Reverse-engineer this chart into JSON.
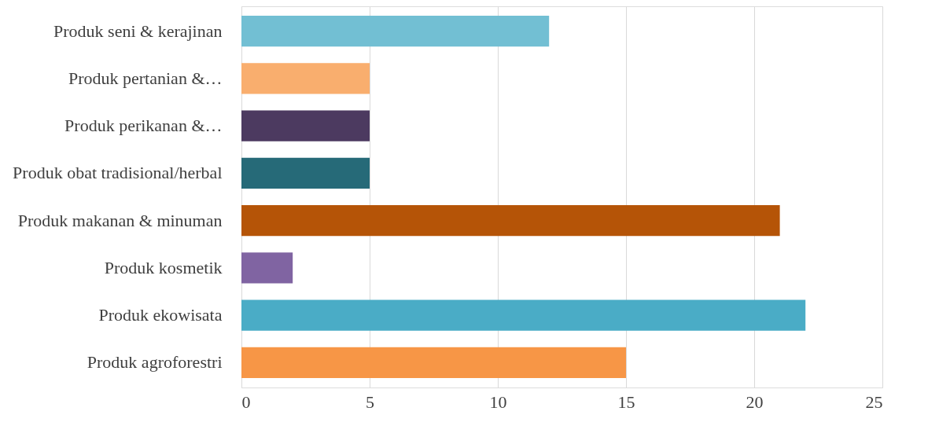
{
  "chart_data": {
    "type": "bar",
    "orientation": "horizontal",
    "categories": [
      "Produk seni & kerajinan",
      "Produk pertanian &…",
      "Produk perikanan &…",
      "Produk obat tradisional/herbal",
      "Produk makanan & minuman",
      "Produk kosmetik",
      "Produk ekowisata",
      "Produk agroforestri"
    ],
    "values": [
      12,
      5,
      5,
      5,
      21,
      2,
      22,
      15
    ],
    "colors": [
      "#72bfd3",
      "#f9ae6e",
      "#4c3a60",
      "#266a78",
      "#b55407",
      "#8064a2",
      "#4aacc6",
      "#f79646"
    ],
    "xlim": [
      0,
      25
    ],
    "xticks": [
      0,
      5,
      10,
      15,
      20,
      25
    ],
    "grid": "x"
  }
}
